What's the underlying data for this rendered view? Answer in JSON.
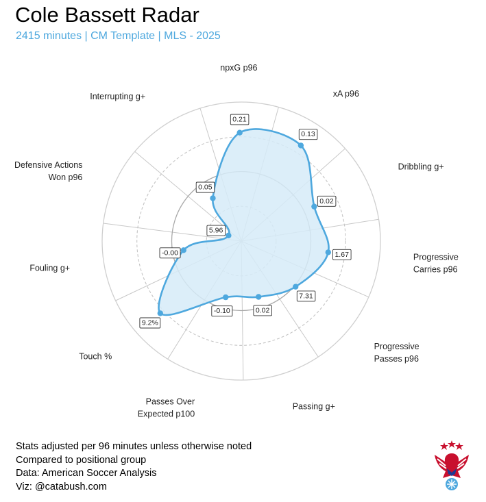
{
  "header": {
    "title": "Cole Bassett Radar",
    "subtitle": "2415 minutes | CM Template | MLS - 2025"
  },
  "notes": [
    "Stats adjusted per 96 minutes unless otherwise noted",
    "Compared to positional group",
    "Data: American Soccer Analysis",
    "Viz: @catabush.com"
  ],
  "colors": {
    "accent": "#4ea8de",
    "fill": "#d6ebf8",
    "grid": "#c8c8c8"
  },
  "logo": {
    "icon": "eagle-soccer-ball-icon"
  },
  "chart_data": {
    "type": "radar",
    "percentile_range": [
      0,
      100
    ],
    "rings": [
      25,
      50,
      75,
      100
    ],
    "axes": [
      {
        "label": [
          "Progressive",
          "Carries p96"
        ],
        "value_label": "1.67",
        "percentile": 63
      },
      {
        "label": [
          "Progressive",
          "Passes p96"
        ],
        "value_label": "7.31",
        "percentile": 51
      },
      {
        "label": [
          "Passing g+"
        ],
        "value_label": "0.02",
        "percentile": 42
      },
      {
        "label": [
          "Passes Over",
          "Expected p100"
        ],
        "value_label": "-0.10",
        "percentile": 42
      },
      {
        "label": [
          "Touch %"
        ],
        "value_label": "9.2%",
        "percentile": 78
      },
      {
        "label": [
          "Fouling g+"
        ],
        "value_label": "-0.00",
        "percentile": 42
      },
      {
        "label": [
          "Defensive Actions",
          "Won p96"
        ],
        "value_label": "5.96",
        "percentile": 10
      },
      {
        "label": [
          "Interrupting g+"
        ],
        "value_label": "0.05",
        "percentile": 37
      },
      {
        "label": [
          "npxG p96"
        ],
        "value_label": "0.21",
        "percentile": 78
      },
      {
        "label": [
          "xA p96"
        ],
        "value_label": "0.13",
        "percentile": 81
      },
      {
        "label": [
          "Dribbling g+"
        ],
        "value_label": "0.02",
        "percentile": 58
      }
    ]
  }
}
